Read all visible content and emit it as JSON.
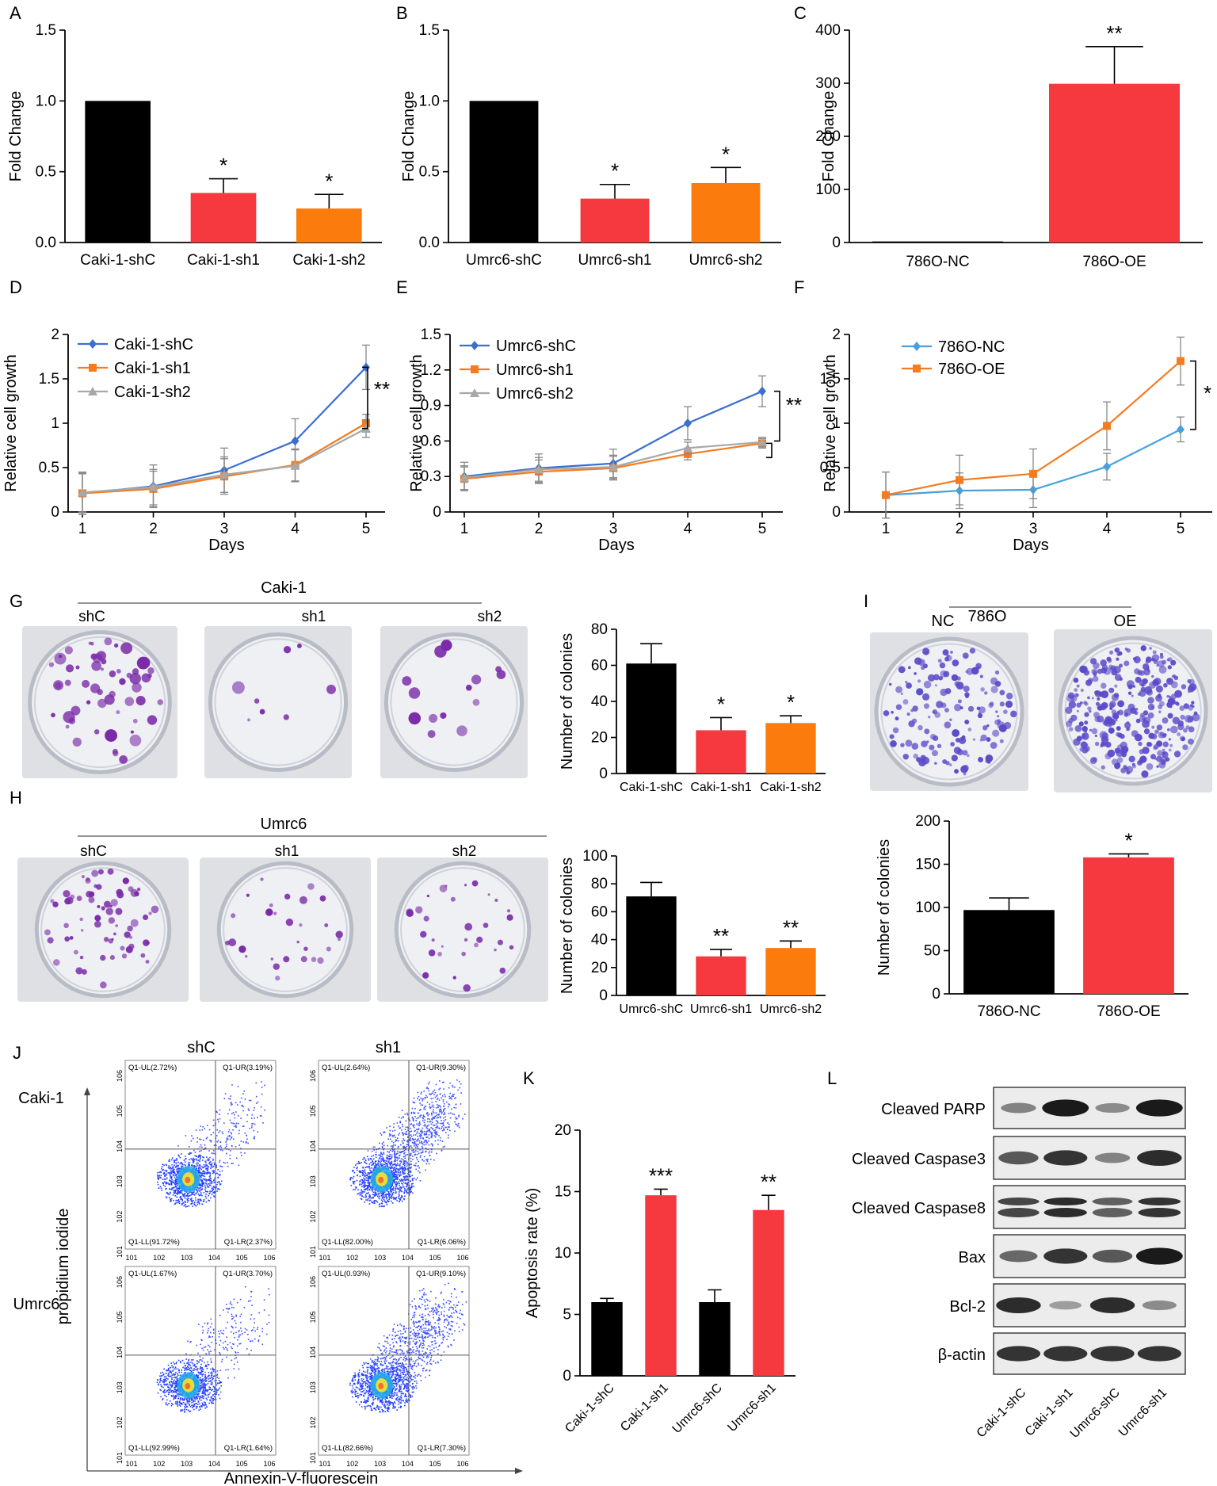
{
  "figure": {
    "panel_letters": {
      "A": "A",
      "B": "B",
      "C": "C",
      "D": "D",
      "E": "E",
      "F": "F",
      "G": "G",
      "H": "H",
      "I": "I",
      "J": "J",
      "K": "K",
      "L": "L"
    },
    "colors": {
      "black": "#000000",
      "red": "#f5393f",
      "orange": "#fb7b0c",
      "blue": "#3a6fd0",
      "orange_line": "#f47b20",
      "gray_line": "#a8a8a8",
      "lightblue_line": "#48a0dc",
      "purple": "#7a2aa8",
      "violet": "#5a4bc8"
    }
  },
  "chart_data": [
    {
      "id": "A",
      "type": "bar",
      "ylabel": "Fold Change",
      "ylim": [
        0,
        1.5
      ],
      "yticks": [
        "0.0",
        "0.5",
        "1.0",
        "1.5"
      ],
      "categories": [
        "Caki-1-shC",
        "Caki-1-sh1",
        "Caki-1-sh2"
      ],
      "values": [
        1.0,
        0.35,
        0.24
      ],
      "errors": [
        0,
        0.1,
        0.1
      ],
      "annotations": [
        "",
        "*",
        "*"
      ]
    },
    {
      "id": "B",
      "type": "bar",
      "ylabel": "Fold Change",
      "ylim": [
        0,
        1.5
      ],
      "yticks": [
        "0.0",
        "0.5",
        "1.0",
        "1.5"
      ],
      "categories": [
        "Umrc6-shC",
        "Umrc6-sh1",
        "Umrc6-sh2"
      ],
      "values": [
        1.0,
        0.31,
        0.42
      ],
      "errors": [
        0,
        0.1,
        0.11
      ],
      "annotations": [
        "",
        "*",
        "*"
      ]
    },
    {
      "id": "C",
      "type": "bar",
      "ylabel": "Fold Change",
      "ylim": [
        0,
        400
      ],
      "yticks": [
        "0",
        "100",
        "200",
        "300",
        "400"
      ],
      "categories": [
        "786O-NC",
        "786O-OE"
      ],
      "values": [
        2,
        299
      ],
      "errors": [
        0,
        70
      ],
      "annotations": [
        "",
        "**"
      ]
    },
    {
      "id": "D",
      "type": "line",
      "xlabel": "Days",
      "ylabel": "Relative cell growth",
      "ylim": [
        0,
        2
      ],
      "yticks": [
        "0",
        "0.5",
        "1",
        "1.5",
        "2"
      ],
      "x": [
        "1",
        "2",
        "3",
        "4",
        "5"
      ],
      "series": [
        {
          "name": "Caki-1-shC",
          "values": [
            0.21,
            0.29,
            0.47,
            0.8,
            1.63
          ],
          "errors": [
            0.24,
            0.24,
            0.25,
            0.25,
            0.25
          ]
        },
        {
          "name": "Caki-1-sh1",
          "values": [
            0.21,
            0.26,
            0.4,
            0.53,
            1.0
          ],
          "errors": [
            0.22,
            0.2,
            0.2,
            0.18,
            0.1
          ]
        },
        {
          "name": "Caki-1-sh2",
          "values": [
            0.22,
            0.28,
            0.42,
            0.52,
            0.94
          ],
          "errors": [
            0.22,
            0.2,
            0.2,
            0.18,
            0.1
          ]
        }
      ],
      "annotations": [
        "**"
      ]
    },
    {
      "id": "E",
      "type": "line",
      "xlabel": "Days",
      "ylabel": "Relative cell growth",
      "ylim": [
        0,
        1.5
      ],
      "yticks": [
        "0",
        "0.3",
        "0.6",
        "0.9",
        "1.2",
        "1.5"
      ],
      "x": [
        "1",
        "2",
        "3",
        "4",
        "5"
      ],
      "series": [
        {
          "name": "Umrc6-shC",
          "values": [
            0.3,
            0.37,
            0.41,
            0.75,
            1.02
          ],
          "errors": [
            0.12,
            0.12,
            0.12,
            0.14,
            0.13
          ]
        },
        {
          "name": "Umrc6-sh1",
          "values": [
            0.28,
            0.34,
            0.37,
            0.49,
            0.58
          ],
          "errors": [
            0.1,
            0.1,
            0.1,
            0.05,
            0.04
          ]
        },
        {
          "name": "Umrc6-sh2",
          "values": [
            0.29,
            0.36,
            0.38,
            0.54,
            0.59
          ],
          "errors": [
            0.1,
            0.1,
            0.1,
            0.05,
            0.04
          ]
        }
      ],
      "annotations": [
        "**"
      ]
    },
    {
      "id": "F",
      "type": "line",
      "xlabel": "Days",
      "ylabel": "Relative cell growth",
      "ylim": [
        0,
        2
      ],
      "yticks": [
        "0",
        "0.5",
        "1",
        "1.5",
        "2"
      ],
      "x": [
        "1",
        "2",
        "3",
        "4",
        "5"
      ],
      "series": [
        {
          "name": "786O-NC",
          "values": [
            0.19,
            0.24,
            0.25,
            0.51,
            0.93
          ],
          "errors": [
            0.26,
            0.2,
            0.2,
            0.15,
            0.14
          ]
        },
        {
          "name": "786O-OE",
          "values": [
            0.19,
            0.36,
            0.43,
            0.97,
            1.7
          ],
          "errors": [
            0.26,
            0.28,
            0.28,
            0.27,
            0.27
          ]
        }
      ],
      "annotations": [
        "*"
      ]
    },
    {
      "id": "G",
      "type": "bar",
      "ylabel": "Number of colonies",
      "ylim": [
        0,
        80
      ],
      "yticks": [
        "0",
        "20",
        "40",
        "60",
        "80"
      ],
      "categories": [
        "Caki-1-shC",
        "Caki-1-sh1",
        "Caki-1-sh2"
      ],
      "values": [
        61,
        24,
        28
      ],
      "errors": [
        11,
        7,
        4
      ],
      "annotations": [
        "",
        "*",
        "*"
      ]
    },
    {
      "id": "H",
      "type": "bar",
      "ylabel": "Number of colonies",
      "ylim": [
        0,
        100
      ],
      "yticks": [
        "0",
        "20",
        "40",
        "60",
        "80",
        "100"
      ],
      "categories": [
        "Umrc6-shC",
        "Umrc6-sh1",
        "Umrc6-sh2"
      ],
      "values": [
        71,
        28,
        34
      ],
      "errors": [
        10,
        5,
        5
      ],
      "annotations": [
        "",
        "**",
        "**"
      ]
    },
    {
      "id": "I",
      "type": "bar",
      "ylabel": "Number of colonies",
      "ylim": [
        0,
        200
      ],
      "yticks": [
        "0",
        "50",
        "100",
        "150",
        "200"
      ],
      "categories": [
        "786O-NC",
        "786O-OE"
      ],
      "values": [
        97,
        158
      ],
      "errors": [
        14,
        4
      ],
      "annotations": [
        "",
        "*"
      ]
    },
    {
      "id": "K",
      "type": "bar",
      "ylabel": "Apoptosis rate (%)",
      "ylim": [
        0,
        20
      ],
      "yticks": [
        "0",
        "5",
        "10",
        "15",
        "20"
      ],
      "categories": [
        "Caki-1-shC",
        "Caki-1-sh1",
        "Umrc6-shC",
        "Umrc6-sh1"
      ],
      "values": [
        6,
        14.7,
        6,
        13.5
      ],
      "errors": [
        0.3,
        0.5,
        1.0,
        1.2
      ],
      "annotations": [
        "",
        "***",
        "",
        "**"
      ]
    }
  ],
  "colony_panels": {
    "G": {
      "title": "Caki-1",
      "wells": [
        "shC",
        "sh1",
        "sh2"
      ]
    },
    "H": {
      "title": "Umrc6",
      "wells": [
        "shC",
        "sh1",
        "sh2"
      ]
    },
    "I": {
      "title": "786O",
      "wells": [
        "NC",
        "OE"
      ]
    }
  },
  "flow": {
    "columns": [
      "shC",
      "sh1"
    ],
    "rows": [
      "Caki-1",
      "Umrc6"
    ],
    "xlabel": "Annexin-V-fluorescein",
    "ylabel": "propidium iodide",
    "xticks": [
      "10^1",
      "10^2",
      "10^3",
      "10^4",
      "10^5",
      "10^6"
    ],
    "yticks": [
      "10^1",
      "10^2",
      "10^3",
      "10^4",
      "10^5",
      "10^6"
    ],
    "quadrants": [
      {
        "UL": "Q1-UL(2.72%)",
        "UR": "Q1-UR(3.19%)",
        "LL": "Q1-LL(91.72%)",
        "LR": "Q1-LR(2.37%)"
      },
      {
        "UL": "Q1-UL(2.64%)",
        "UR": "Q1-UR(9.30%)",
        "LL": "Q1-LL(82.00%)",
        "LR": "Q1-LR(6.06%)"
      },
      {
        "UL": "Q1-UL(1.67%)",
        "UR": "Q1-UR(3.70%)",
        "LL": "Q1-LL(92.99%)",
        "LR": "Q1-LR(1.64%)"
      },
      {
        "UL": "Q1-UL(0.93%)",
        "UR": "Q1-UR(9.10%)",
        "LL": "Q1-LL(82.66%)",
        "LR": "Q1-LR(7.30%)"
      }
    ]
  },
  "western": {
    "bands": [
      "Cleaved PARP",
      "Cleaved Caspase3",
      "Cleaved Caspase8",
      "Bax",
      "Bcl-2",
      "β-actin"
    ],
    "lanes": [
      "Caki-1-shC",
      "Caki-1-sh1",
      "Umrc6-shC",
      "Umrc6-sh1"
    ],
    "intensity": [
      [
        0.35,
        0.95,
        0.3,
        0.95
      ],
      [
        0.6,
        0.8,
        0.35,
        0.85
      ],
      [
        0.7,
        0.85,
        0.55,
        0.8
      ],
      [
        0.5,
        0.8,
        0.6,
        0.95
      ],
      [
        0.85,
        0.2,
        0.85,
        0.3
      ],
      [
        0.8,
        0.8,
        0.8,
        0.8
      ]
    ]
  }
}
